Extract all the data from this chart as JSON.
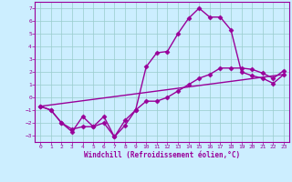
{
  "bg_color": "#cceeff",
  "grid_color": "#99cccc",
  "line_color": "#990099",
  "marker": "D",
  "markersize": 2.5,
  "linewidth": 1.0,
  "xlim": [
    -0.5,
    23.5
  ],
  "ylim": [
    -3.5,
    7.5
  ],
  "xticks": [
    0,
    1,
    2,
    3,
    4,
    5,
    6,
    7,
    8,
    9,
    10,
    11,
    12,
    13,
    14,
    15,
    16,
    17,
    18,
    19,
    20,
    21,
    22,
    23
  ],
  "yticks": [
    -3,
    -2,
    -1,
    0,
    1,
    2,
    3,
    4,
    5,
    6,
    7
  ],
  "xlabel": "Windchill (Refroidissement éolien,°C)",
  "line1_x": [
    0,
    1,
    2,
    3,
    4,
    5,
    6,
    7,
    8,
    9,
    10,
    11,
    12,
    13,
    14,
    15,
    16,
    17,
    18,
    19,
    20,
    21,
    22,
    23
  ],
  "line1_y": [
    -0.7,
    -1.0,
    -2.0,
    -2.7,
    -1.5,
    -2.3,
    -1.5,
    -3.1,
    -1.8,
    -1.0,
    2.4,
    3.5,
    3.6,
    5.0,
    6.2,
    7.0,
    6.3,
    6.3,
    5.3,
    2.0,
    1.7,
    1.5,
    1.1,
    1.8
  ],
  "line2_x": [
    0,
    1,
    2,
    3,
    4,
    5,
    6,
    7,
    8,
    9,
    10,
    11,
    12,
    13,
    14,
    15,
    16,
    17,
    18,
    19,
    20,
    21,
    22,
    23
  ],
  "line2_y": [
    -0.7,
    -1.0,
    -2.0,
    -2.5,
    -2.3,
    -2.3,
    -2.0,
    -3.1,
    -2.2,
    -1.0,
    -0.3,
    -0.3,
    0.0,
    0.5,
    1.0,
    1.5,
    1.8,
    2.3,
    2.3,
    2.3,
    2.2,
    1.9,
    1.5,
    2.1
  ],
  "line3_x": [
    0,
    23
  ],
  "line3_y": [
    -0.7,
    1.8
  ]
}
